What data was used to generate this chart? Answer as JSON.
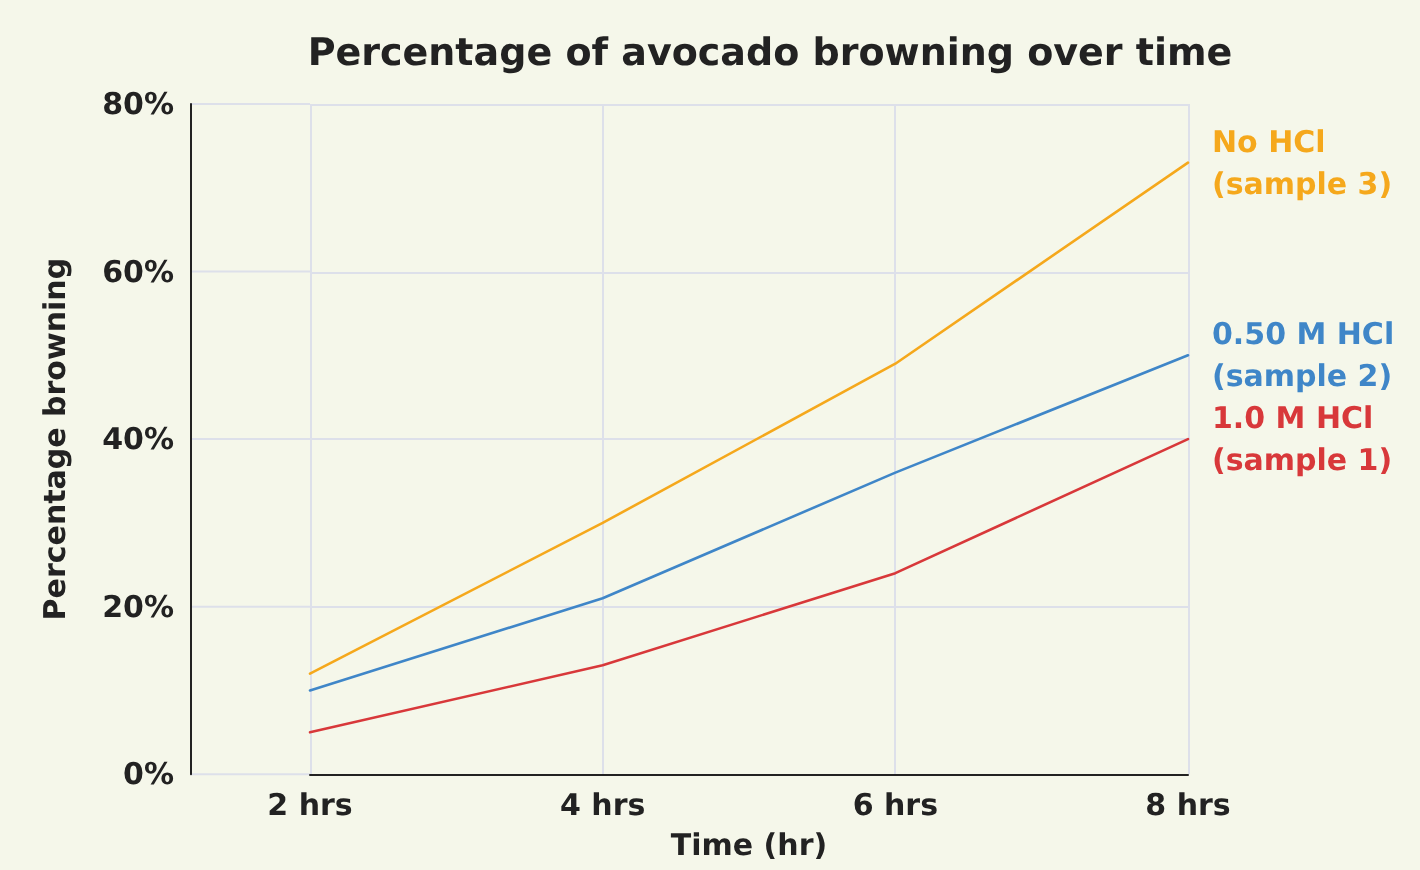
{
  "chart_data": {
    "type": "line",
    "title": "Percentage of avocado browning over time",
    "xlabel": "Time (hr)",
    "ylabel": "Percentage browning",
    "categories": [
      "2 hrs",
      "4 hrs",
      "6 hrs",
      "8 hrs"
    ],
    "series": [
      {
        "name": "No HCl\n(sample 3)",
        "color": "#f5a81c",
        "values": [
          12,
          30,
          49,
          73
        ]
      },
      {
        "name": "0.50 M HCl\n(sample 2)",
        "color": "#3f86c8",
        "values": [
          10,
          21,
          36,
          50
        ]
      },
      {
        "name": "1.0 M HCl\n(sample 1)",
        "color": "#d8383a",
        "values": [
          5,
          13,
          24,
          40
        ]
      }
    ],
    "ylim": [
      0,
      80
    ],
    "yticks": [
      {
        "value": 0,
        "label": "0%"
      },
      {
        "value": 20,
        "label": "20%"
      },
      {
        "value": 40,
        "label": "40%"
      },
      {
        "value": 60,
        "label": "60%"
      },
      {
        "value": 80,
        "label": "80%"
      }
    ],
    "grid": true,
    "legend": false,
    "marker": "none",
    "line_style": "solid"
  }
}
